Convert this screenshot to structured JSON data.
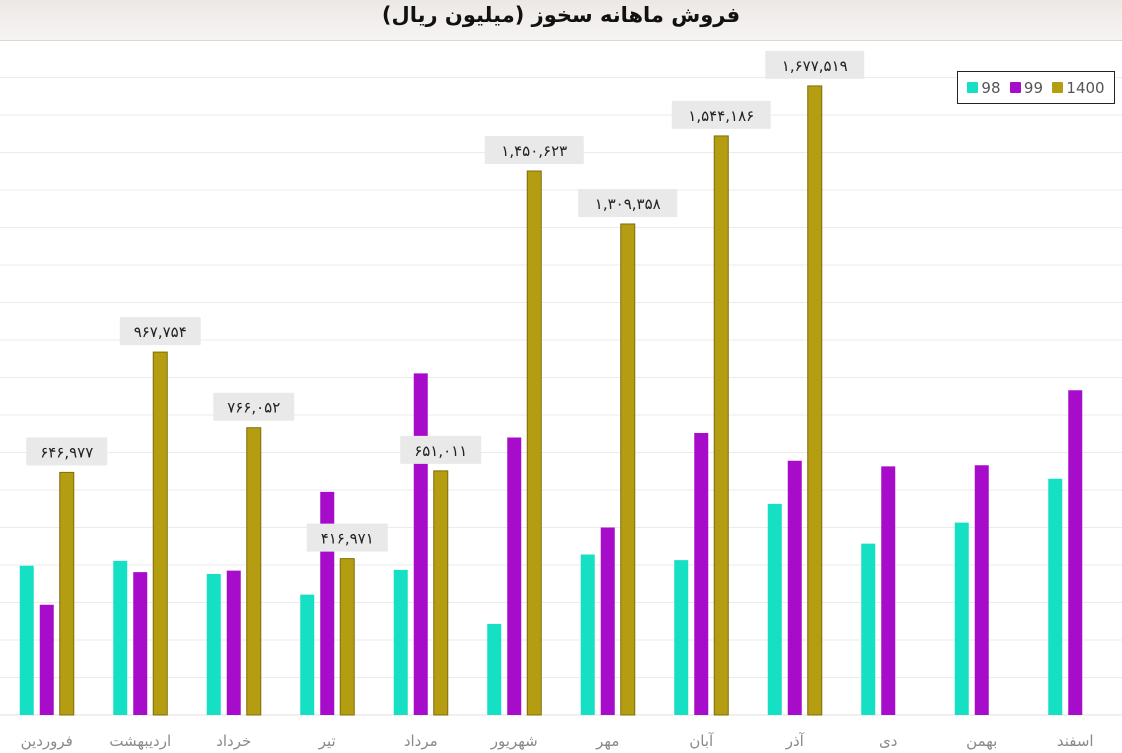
{
  "chart_data": {
    "type": "bar",
    "title": "فروش ماهانه سخوز (میلیون ریال)",
    "xlabel": "",
    "ylabel": "",
    "ylim": [
      0,
      1800000
    ],
    "grid": true,
    "legend_position": "top-right",
    "categories": [
      "فروردین",
      "اردیبهشت",
      "خرداد",
      "تیر",
      "مرداد",
      "شهریور",
      "مهر",
      "آبان",
      "آذر",
      "دی",
      "بهمن",
      "اسفند"
    ],
    "series": [
      {
        "name": "98",
        "color": "#16e0c3",
        "values": [
          398000,
          411000,
          376000,
          321000,
          387000,
          243000,
          428000,
          413000,
          563000,
          457000,
          513000,
          630000
        ]
      },
      {
        "name": "99",
        "color": "#a60cc9",
        "values": [
          294000,
          381000,
          385000,
          595000,
          911000,
          740000,
          500000,
          752000,
          678000,
          663000,
          666000,
          866000
        ]
      },
      {
        "name": "1400",
        "color": "#b59d12",
        "values": [
          646977,
          967754,
          766052,
          416971,
          651011,
          1450623,
          1309358,
          1544186,
          1677519,
          null,
          null,
          null
        ],
        "labels": [
          "۶۴۶,۹۷۷",
          "۹۶۷,۷۵۴",
          "۷۶۶,۰۵۲",
          "۴۱۶,۹۷۱",
          "۶۵۱,۰۱۱",
          "۱,۴۵۰,۶۲۳",
          "۱,۳۰۹,۳۵۸",
          "۱,۵۴۴,۱۸۶",
          "۱,۶۷۷,۵۱۹",
          "",
          "",
          ""
        ]
      }
    ]
  }
}
